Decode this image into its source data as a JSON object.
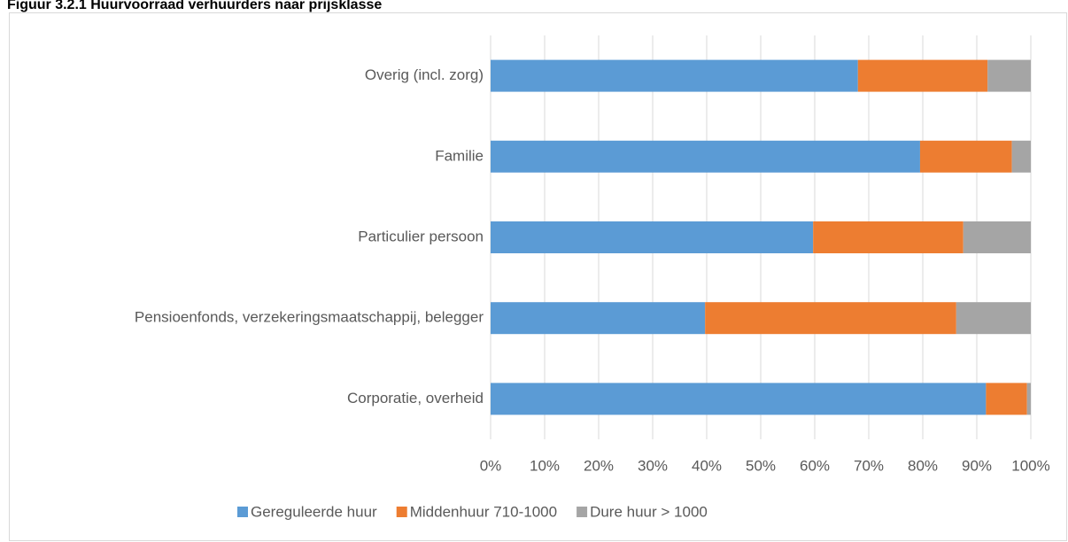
{
  "chart_data": {
    "type": "stacked-bar",
    "orientation": "horizontal",
    "title": "Figuur 3.2.1 Huurvoorraad verhuurders naar prijsklasse",
    "categories": [
      "Overig (incl. zorg)",
      "Familie",
      "Particulier persoon",
      "Pensioenfonds, verzekeringsmaatschappij, belegger",
      "Corporatie, overheid"
    ],
    "series": [
      {
        "name": "Gereguleerde huur",
        "color": "#5b9bd5",
        "values": [
          68,
          79.5,
          59.7,
          39.7,
          91.7
        ]
      },
      {
        "name": "Middenhuur 710-1000",
        "color": "#ed7d31",
        "values": [
          24,
          17,
          27.8,
          46.5,
          7.6
        ]
      },
      {
        "name": "Dure huur > 1000",
        "color": "#a5a5a5",
        "values": [
          8,
          3.5,
          12.5,
          13.8,
          0.7
        ]
      }
    ],
    "xlim": [
      0,
      100
    ],
    "xticks": [
      {
        "value": 0,
        "label": "0%"
      },
      {
        "value": 10,
        "label": "10%"
      },
      {
        "value": 20,
        "label": "20%"
      },
      {
        "value": 30,
        "label": "30%"
      },
      {
        "value": 40,
        "label": "40%"
      },
      {
        "value": 50,
        "label": "50%"
      },
      {
        "value": 60,
        "label": "60%"
      },
      {
        "value": 70,
        "label": "70%"
      },
      {
        "value": 80,
        "label": "80%"
      },
      {
        "value": 90,
        "label": "90%"
      },
      {
        "value": 100,
        "label": "100%"
      }
    ],
    "grid": true,
    "legend": "bottom"
  }
}
